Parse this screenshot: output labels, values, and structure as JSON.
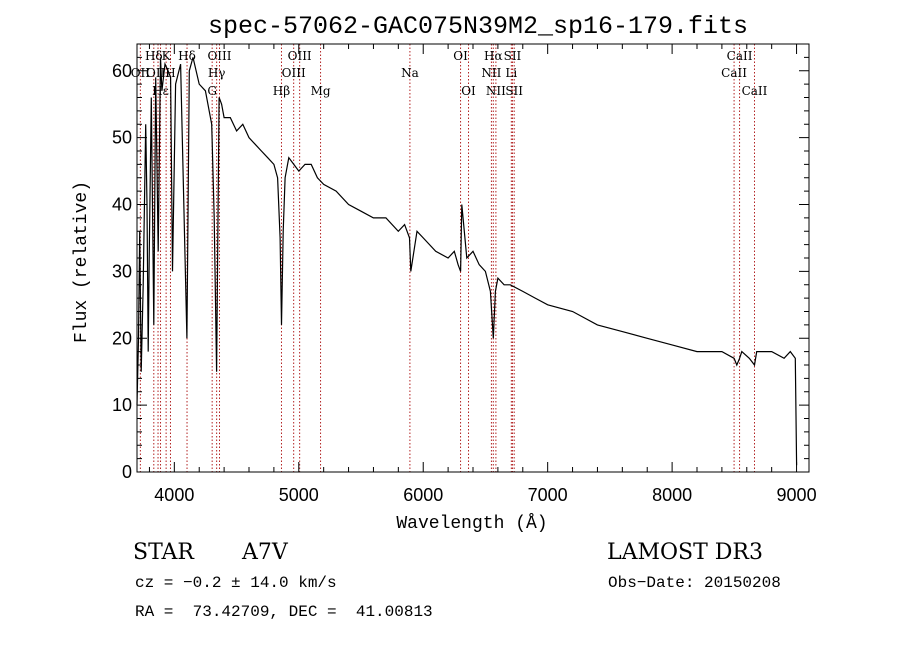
{
  "chart_data": {
    "type": "line",
    "title": "spec-57062-GAC075N39M2_sp16-179.fits",
    "xlabel": "Wavelength (Å)",
    "ylabel": "Flux (relative)",
    "xlim": [
      3700,
      9100
    ],
    "ylim": [
      0,
      64
    ],
    "xticks": [
      4000,
      5000,
      6000,
      7000,
      8000,
      9000
    ],
    "yticks": [
      0,
      10,
      20,
      30,
      40,
      50,
      60
    ],
    "xtick_labels": [
      "4000",
      "5000",
      "6000",
      "7000",
      "8000",
      "9000"
    ],
    "ytick_labels": [
      "0",
      "10",
      "20",
      "30",
      "40",
      "50",
      "60"
    ],
    "line_color": "#000000",
    "marker_color": "#b22222",
    "series": [
      {
        "name": "flux",
        "x": [
          3700,
          3712,
          3722,
          3734,
          3750,
          3770,
          3780,
          3790,
          3798,
          3815,
          3835,
          3850,
          3870,
          3889,
          3900,
          3925,
          3950,
          3970,
          3985,
          4010,
          4050,
          4101,
          4120,
          4150,
          4200,
          4250,
          4300,
          4320,
          4340,
          4360,
          4380,
          4400,
          4450,
          4500,
          4550,
          4600,
          4650,
          4700,
          4750,
          4800,
          4830,
          4850,
          4861,
          4875,
          4890,
          4920,
          4960,
          5000,
          5050,
          5100,
          5150,
          5200,
          5300,
          5400,
          5500,
          5600,
          5700,
          5800,
          5850,
          5890,
          5900,
          5950,
          6000,
          6100,
          6200,
          6250,
          6280,
          6300,
          6310,
          6350,
          6400,
          6450,
          6500,
          6540,
          6563,
          6580,
          6600,
          6650,
          6700,
          6800,
          6900,
          7000,
          7200,
          7400,
          7600,
          7800,
          8000,
          8200,
          8400,
          8498,
          8520,
          8542,
          8560,
          8620,
          8662,
          8680,
          8700,
          8800,
          8900,
          8950,
          8990,
          9000
        ],
        "y": [
          10,
          20,
          36,
          15,
          28,
          52,
          40,
          18,
          32,
          56,
          22,
          59,
          33,
          62,
          57,
          61,
          60,
          59,
          30,
          58,
          61,
          20,
          60,
          62,
          58,
          57,
          52,
          38,
          15,
          56,
          55,
          53,
          53,
          51,
          52,
          50,
          49,
          48,
          47,
          46,
          44,
          35,
          22,
          36,
          44,
          47,
          46,
          45,
          46,
          46,
          44,
          43,
          42,
          40,
          39,
          38,
          38,
          36,
          37,
          35,
          30,
          36,
          35,
          33,
          32,
          33,
          31,
          30,
          40,
          32,
          33,
          31,
          30,
          27,
          20,
          27,
          29,
          28,
          28,
          27,
          26,
          25,
          24,
          22,
          21,
          20,
          19,
          18,
          18,
          17,
          16,
          17,
          18,
          17,
          16,
          18,
          18,
          18,
          17,
          18,
          17,
          1
        ]
      }
    ],
    "lines": [
      {
        "label": "Hδ",
        "wave": 3835,
        "row": 1
      },
      {
        "label": "OII",
        "wave": 3727,
        "row": 2
      },
      {
        "label": "OIII",
        "wave": 3869,
        "row": 2
      },
      {
        "label": "Hε",
        "wave": 3889,
        "row": 3
      },
      {
        "label": "K",
        "wave": 3934,
        "row": 1
      },
      {
        "label": "H",
        "wave": 3969,
        "row": 2
      },
      {
        "label": "Hδ",
        "wave": 4102,
        "row": 1
      },
      {
        "label": "OIII",
        "wave": 4363,
        "row": 1
      },
      {
        "label": "Hγ",
        "wave": 4340,
        "row": 2
      },
      {
        "label": "G",
        "wave": 4304,
        "row": 3
      },
      {
        "label": "OIII",
        "wave": 5007,
        "row": 1
      },
      {
        "label": "OIII",
        "wave": 4959,
        "row": 2
      },
      {
        "label": "Hβ",
        "wave": 4861,
        "row": 3
      },
      {
        "label": "Mg",
        "wave": 5175,
        "row": 3
      },
      {
        "label": "Na",
        "wave": 5893,
        "row": 2
      },
      {
        "label": "OI",
        "wave": 6300,
        "row": 1
      },
      {
        "label": "OI",
        "wave": 6364,
        "row": 3
      },
      {
        "label": "Hα",
        "wave": 6563,
        "row": 1
      },
      {
        "label": "NII",
        "wave": 6548,
        "row": 2
      },
      {
        "label": "NII",
        "wave": 6584,
        "row": 3
      },
      {
        "label": "SII",
        "wave": 6717,
        "row": 1
      },
      {
        "label": "Li",
        "wave": 6708,
        "row": 2
      },
      {
        "label": "SII",
        "wave": 6731,
        "row": 3
      },
      {
        "label": "CaII",
        "wave": 8542,
        "row": 1
      },
      {
        "label": "CaII",
        "wave": 8498,
        "row": 2
      },
      {
        "label": "CaII",
        "wave": 8662,
        "row": 3
      }
    ]
  },
  "info": {
    "object_class": "STAR",
    "subclass": "A7V",
    "survey": "LAMOST DR3",
    "cz": "cz = −0.2 ± 14.0 km/s",
    "obs_date": "Obs−Date: 20150208",
    "coords": "RA =  73.42709, DEC =  41.00813"
  }
}
